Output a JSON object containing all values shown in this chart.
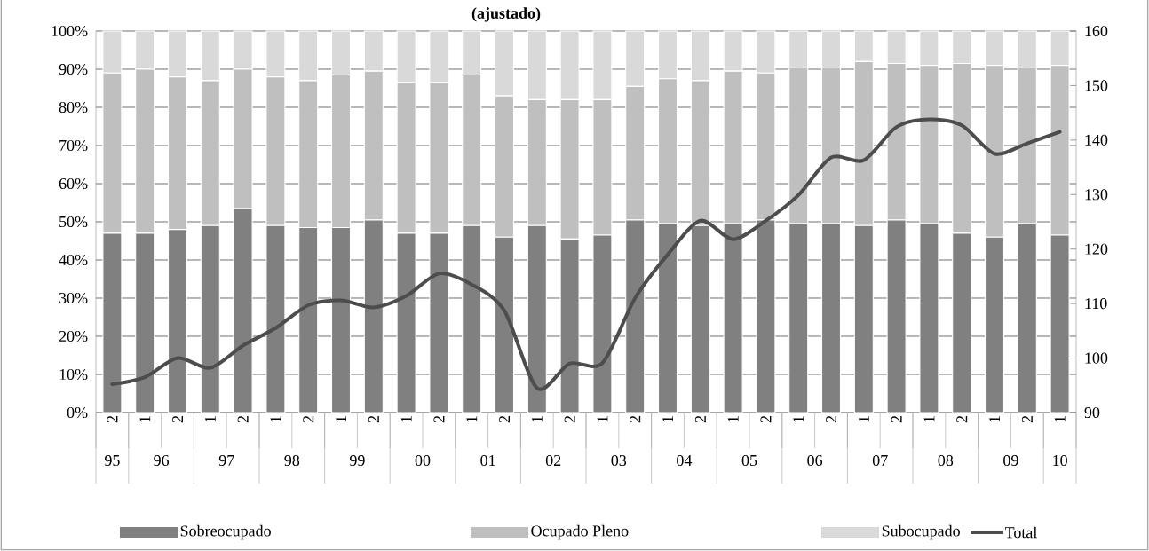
{
  "chart_data": {
    "type": "bar",
    "title": "(ajustado)",
    "stacked": true,
    "grid": "y",
    "legend": "bottom",
    "categories": [
      "2",
      "1",
      "2",
      "1",
      "2",
      "1",
      "2",
      "1",
      "2",
      "1",
      "2",
      "1",
      "2",
      "1",
      "2",
      "1",
      "2",
      "1",
      "2",
      "1",
      "2",
      "1",
      "2",
      "1",
      "2",
      "1",
      "2",
      "1",
      "2",
      "1"
    ],
    "annotations": [
      "95",
      "96",
      "97",
      "98",
      "99",
      "00",
      "01",
      "02",
      "03",
      "04",
      "05",
      "06",
      "07",
      "08",
      "09",
      "10"
    ],
    "ylim": [
      0,
      100
    ],
    "yticks": [
      {
        "value": 0,
        "label": "0%"
      },
      {
        "value": 10,
        "label": "10%"
      },
      {
        "value": 20,
        "label": "20%"
      },
      {
        "value": 30,
        "label": "30%"
      },
      {
        "value": 40,
        "label": "40%"
      },
      {
        "value": 50,
        "label": "50%"
      },
      {
        "value": 60,
        "label": "60%"
      },
      {
        "value": 70,
        "label": "70%"
      },
      {
        "value": 80,
        "label": "80%"
      },
      {
        "value": 90,
        "label": "90%"
      },
      {
        "value": 100,
        "label": "100%"
      }
    ],
    "y2lim": [
      90,
      160
    ],
    "y2ticks": [
      90,
      100,
      110,
      120,
      130,
      140,
      150,
      160
    ],
    "series": [
      {
        "name": "Sobreocupado",
        "color": "#808080",
        "values": [
          47,
          47,
          48,
          49,
          53.5,
          49,
          48.5,
          48.5,
          50.5,
          47,
          47,
          49,
          46,
          49,
          45.5,
          46.5,
          50.5,
          49.5,
          49,
          49.5,
          50.5,
          49.5,
          49.5,
          49,
          50.5,
          49.5,
          47,
          46,
          49.5,
          46.5
        ]
      },
      {
        "name": "Ocupado Pleno",
        "color": "#bfbfbf",
        "values": [
          42,
          43,
          40,
          38,
          36.5,
          39,
          38.5,
          40,
          39,
          39.5,
          39.5,
          39.5,
          37,
          33,
          36.5,
          35.5,
          35,
          38,
          38,
          40,
          38.5,
          41,
          41,
          43,
          41,
          41.5,
          44.5,
          45,
          41,
          44.5
        ]
      },
      {
        "name": "Subocupado",
        "color": "#d9d9d9",
        "values": [
          11,
          10,
          12,
          13,
          10,
          12,
          13,
          11.5,
          10.5,
          13.5,
          13.5,
          11.5,
          17,
          18,
          18,
          18,
          14.5,
          12.5,
          13,
          10.5,
          11,
          9.5,
          9.5,
          8,
          8.5,
          9,
          8.5,
          9,
          9.5,
          9
        ]
      },
      {
        "name": "Total",
        "type": "line",
        "axis": "y2",
        "color": "#4d4d4d",
        "values": [
          95.2,
          96.5,
          100,
          98.2,
          102.3,
          105.5,
          109.7,
          110.6,
          109.3,
          111.4,
          115.5,
          113.5,
          108.7,
          94.5,
          99,
          99.1,
          111,
          119,
          125.2,
          121.8,
          125.2,
          129.9,
          136.8,
          136.3,
          142.4,
          143.8,
          142.7,
          137.5,
          139.4,
          141.5
        ]
      }
    ]
  }
}
